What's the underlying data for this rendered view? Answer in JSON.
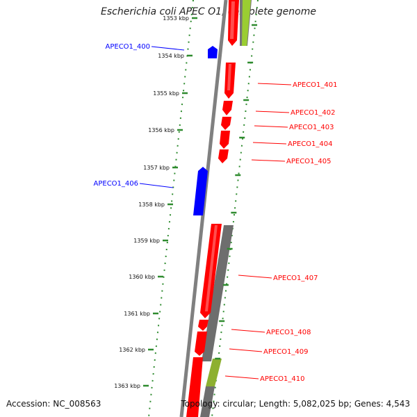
{
  "title": "Escherichia coli APEC O1, complete genome",
  "footer": {
    "accession": "Accession: NC_008563",
    "summary": "Topology: circular; Length: 5,082,025 bp; Genes: 4,543"
  },
  "colors": {
    "forward_genes": "#ff0000",
    "reverse_genes": "#0000ff",
    "backbone": "#808080",
    "ticks": "#2e8b2e",
    "gray_feature": "#6e6e6e",
    "green_feature": "#9acd32"
  },
  "ticks": [
    {
      "label": "1353 kbp"
    },
    {
      "label": "1354 kbp"
    },
    {
      "label": "1355 kbp"
    },
    {
      "label": "1356 kbp"
    },
    {
      "label": "1357 kbp"
    },
    {
      "label": "1358 kbp"
    },
    {
      "label": "1359 kbp"
    },
    {
      "label": "1360 kbp"
    },
    {
      "label": "1361 kbp"
    },
    {
      "label": "1362 kbp"
    },
    {
      "label": "1363 kbp"
    }
  ],
  "genes": [
    {
      "label": "APECO1_400",
      "strand": "reverse"
    },
    {
      "label": "APECO1_401",
      "strand": "forward"
    },
    {
      "label": "APECO1_402",
      "strand": "forward"
    },
    {
      "label": "APECO1_403",
      "strand": "forward"
    },
    {
      "label": "APECO1_404",
      "strand": "forward"
    },
    {
      "label": "APECO1_405",
      "strand": "forward"
    },
    {
      "label": "APECO1_406",
      "strand": "reverse"
    },
    {
      "label": "APECO1_407",
      "strand": "forward"
    },
    {
      "label": "APECO1_408",
      "strand": "forward"
    },
    {
      "label": "APECO1_409",
      "strand": "forward"
    },
    {
      "label": "APECO1_410",
      "strand": "forward"
    }
  ]
}
